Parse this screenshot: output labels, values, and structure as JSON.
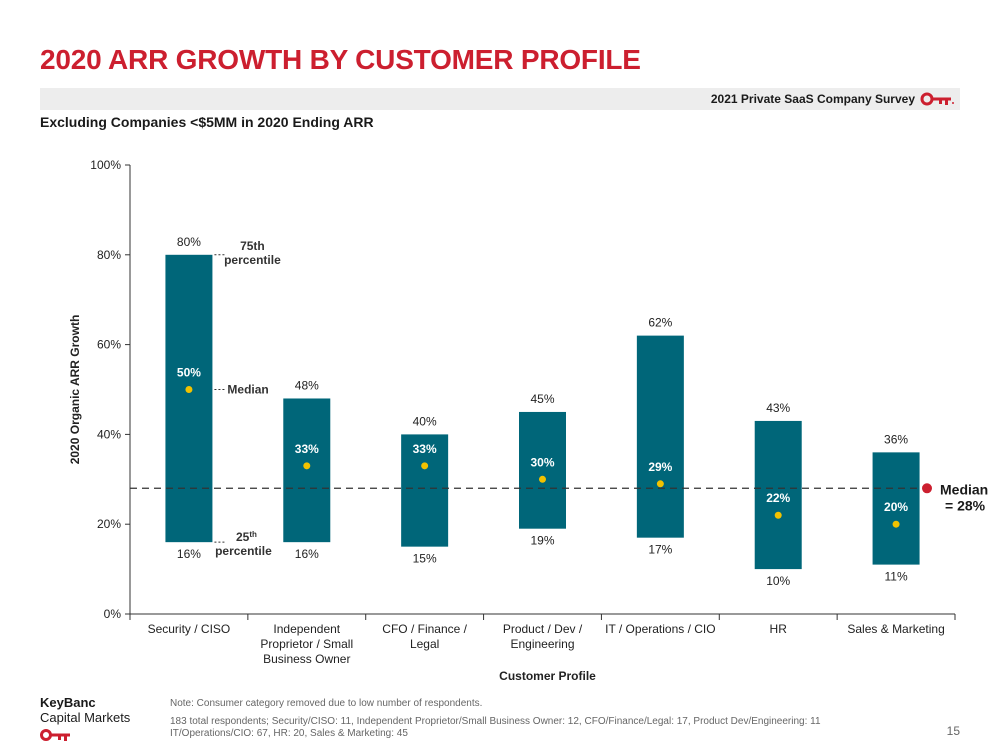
{
  "header": {
    "title": "2020 ARR GROWTH BY CUSTOMER PROFILE",
    "survey_label": "2021 Private SaaS Company Survey",
    "subtitle": "Excluding Companies <$5MM in 2020 Ending ARR"
  },
  "colors": {
    "accent": "#cc1f2f",
    "bar": "#006679",
    "median_dot": "#f2c200",
    "overall_dot": "#cc1f2f"
  },
  "chart_data": {
    "type": "bar",
    "subtype": "floating-range",
    "xlabel": "Customer Profile",
    "ylabel": "2020 Organic ARR Growth",
    "ylim": [
      0,
      100
    ],
    "yticks": [
      "0%",
      "20%",
      "40%",
      "60%",
      "80%",
      "100%"
    ],
    "grid": false,
    "categories": [
      [
        "Security / CISO"
      ],
      [
        "Independent",
        "Proprietor / Small",
        "Business Owner"
      ],
      [
        "CFO / Finance /",
        "Legal"
      ],
      [
        "Product / Dev /",
        "Engineering"
      ],
      [
        "IT / Operations / CIO"
      ],
      [
        "HR"
      ],
      [
        "Sales & Marketing"
      ]
    ],
    "p75": [
      80,
      48,
      40,
      45,
      62,
      43,
      36
    ],
    "median": [
      50,
      33,
      33,
      30,
      29,
      22,
      20
    ],
    "p25": [
      16,
      16,
      15,
      19,
      17,
      10,
      11
    ],
    "p75_labels": [
      "80%",
      "48%",
      "40%",
      "45%",
      "62%",
      "43%",
      "36%"
    ],
    "median_labels": [
      "50%",
      "33%",
      "33%",
      "30%",
      "29%",
      "22%",
      "20%"
    ],
    "p25_labels": [
      "16%",
      "16%",
      "15%",
      "19%",
      "17%",
      "10%",
      "11%"
    ],
    "overall_median": 28,
    "overall_median_label": [
      "Median",
      "= 28%"
    ],
    "annotations": {
      "p75": [
        "75th",
        "percentile"
      ],
      "median": "Median",
      "p25_base": "25",
      "p25_sup": "th",
      "p25_word": "percentile"
    }
  },
  "footer": {
    "brand_name": "KeyBanc",
    "brand_sub": "Capital Markets",
    "note1": "Note: Consumer category removed due to low number of respondents.",
    "note2": "183 total respondents; Security/CISO: 11, Independent Proprietor/Small Business Owner: 12, CFO/Finance/Legal: 17, Product Dev/Engineering: 11",
    "note3": "IT/Operations/CIO: 67, HR: 20, Sales & Marketing: 45",
    "page_number": "15"
  }
}
